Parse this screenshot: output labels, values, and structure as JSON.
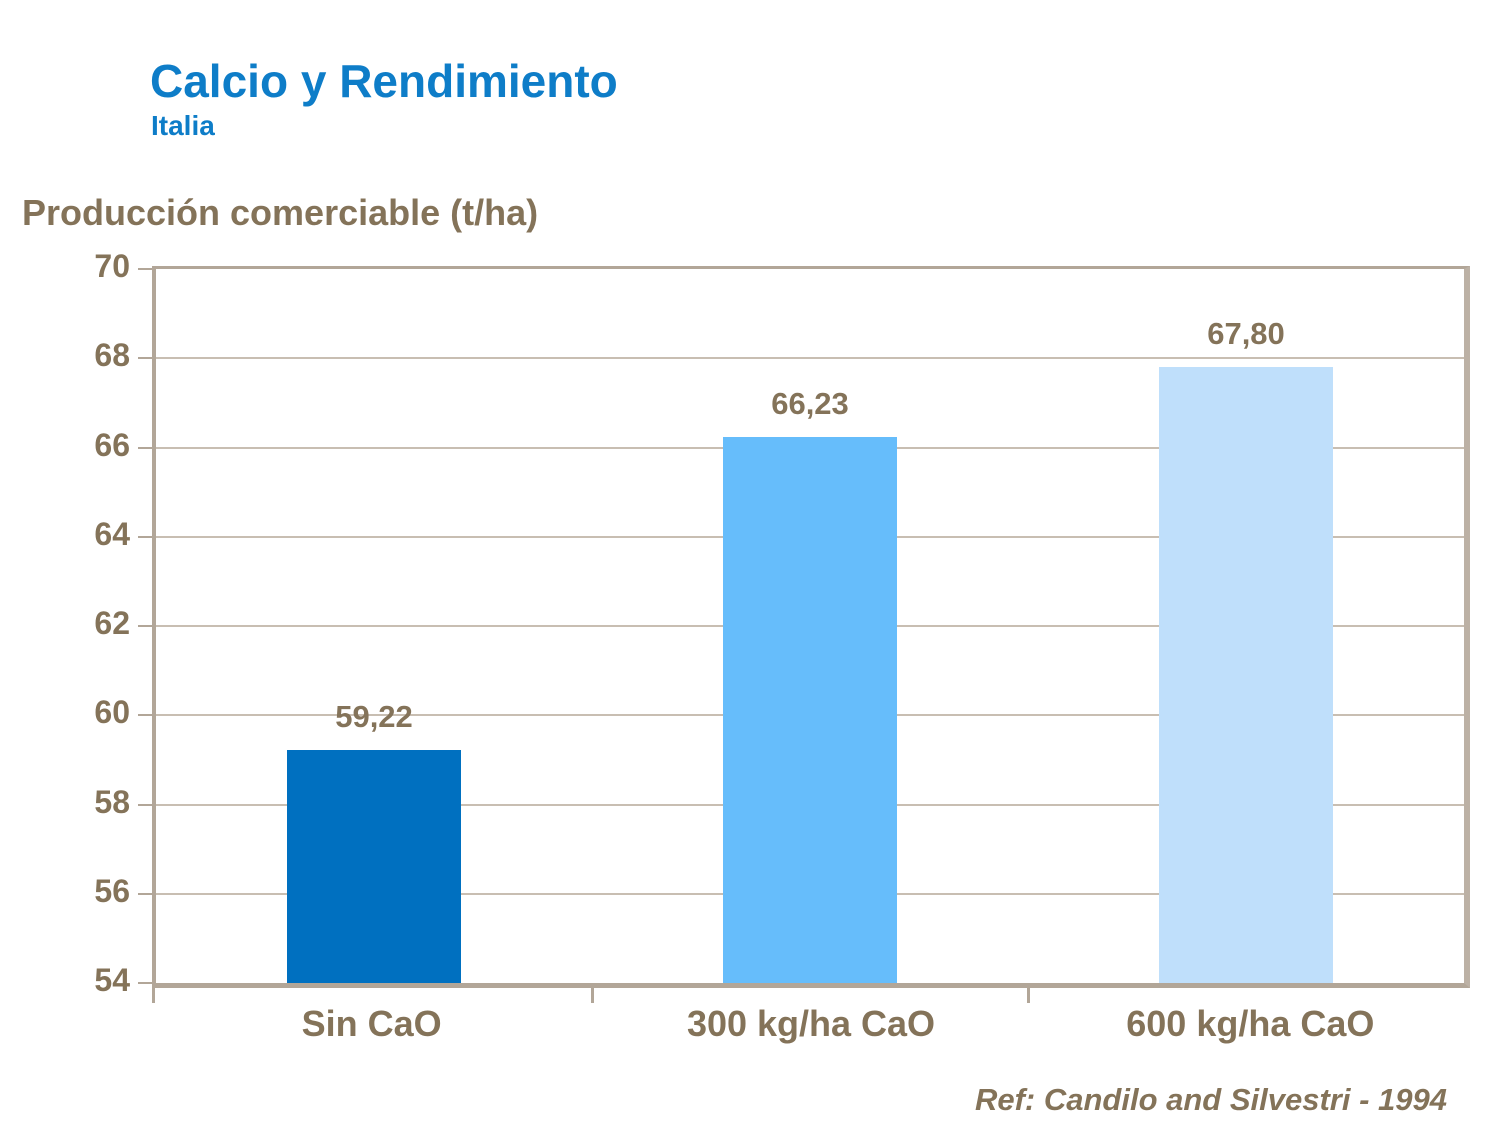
{
  "slide": {
    "reference": "Ref: Candilo and Silvestri - 1994"
  },
  "chart_data": {
    "type": "bar",
    "title": "Calcio y Rendimiento",
    "subtitle": "Italia",
    "ylabel": "Producción comerciable (t/ha)",
    "xlabel": "",
    "categories": [
      "Sin CaO",
      "300 kg/ha CaO",
      "600 kg/ha CaO"
    ],
    "values": [
      59.22,
      66.23,
      67.8
    ],
    "value_labels": [
      "59,22",
      "66,23",
      "67,80"
    ],
    "ylim": [
      54,
      70
    ],
    "ytick_step": 2,
    "grid": true,
    "legend": false,
    "annotation": "Ref: Candilo and Silvestri - 1994",
    "colors": {
      "bars": [
        "#0070C0",
        "#66BDFB",
        "#BFDFFB"
      ],
      "title_blue": "#0E7DC8",
      "text_brown": "#847359",
      "axis_taupe": "#B2A698",
      "gridline": "#C8BEB2"
    }
  }
}
